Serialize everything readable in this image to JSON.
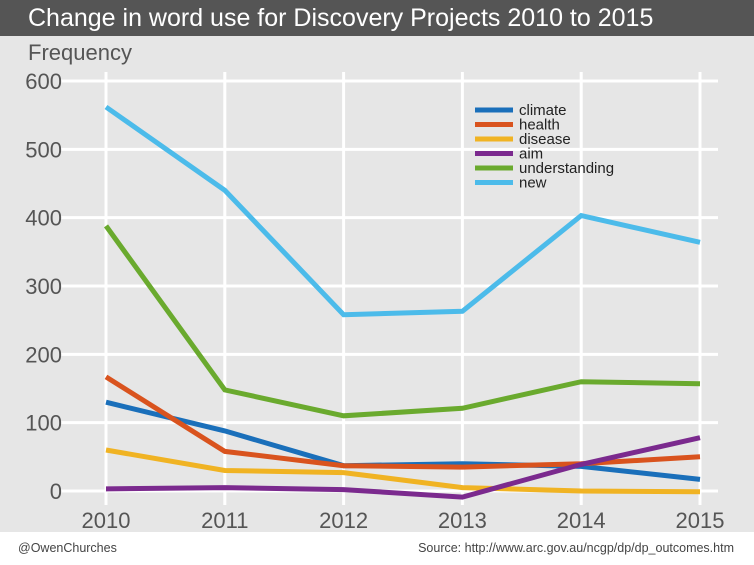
{
  "header": {
    "title": "Change in word use for Discovery Projects 2010 to 2015"
  },
  "footer": {
    "credit": "@OwenChurches",
    "source": "Source: http://www.arc.gov.au/ncgp/dp/dp_outcomes.htm"
  },
  "chart_data": {
    "type": "line",
    "title": "Change in word use for Discovery Projects 2010 to 2015",
    "ylabel": "Frequency",
    "xlabel": "",
    "x": [
      2010,
      2011,
      2012,
      2013,
      2014,
      2015
    ],
    "x_tick_labels": [
      "2010",
      "2011",
      "2012",
      "2013",
      "2014",
      "2015"
    ],
    "y_ticks": [
      0,
      100,
      200,
      300,
      400,
      500,
      600
    ],
    "y_tick_labels": [
      "0",
      "100",
      "200",
      "300",
      "400",
      "500",
      "600"
    ],
    "xlim": [
      2010,
      2015
    ],
    "ylim": [
      0,
      600
    ],
    "grid": true,
    "legend_position": "top-right",
    "series": [
      {
        "name": "climate",
        "color": "#1a6fba",
        "values": [
          130,
          88,
          37,
          40,
          36,
          17
        ]
      },
      {
        "name": "health",
        "color": "#d9531e",
        "values": [
          167,
          58,
          37,
          35,
          40,
          50
        ]
      },
      {
        "name": "disease",
        "color": "#f0b323",
        "values": [
          60,
          30,
          27,
          5,
          0,
          -1
        ]
      },
      {
        "name": "aim",
        "color": "#7b2a8e",
        "values": [
          3,
          5,
          2,
          -9,
          39,
          78
        ]
      },
      {
        "name": "understanding",
        "color": "#6aaa2e",
        "values": [
          388,
          148,
          110,
          121,
          160,
          157
        ]
      },
      {
        "name": "new",
        "color": "#4cbbea",
        "values": [
          562,
          440,
          258,
          263,
          403,
          364
        ]
      }
    ]
  }
}
